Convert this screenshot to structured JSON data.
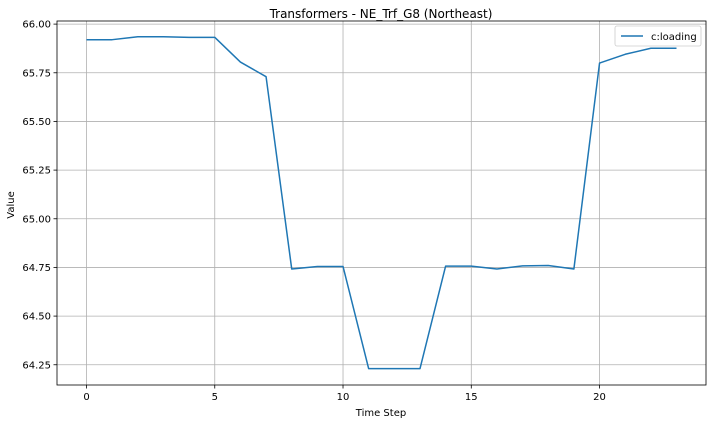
{
  "chart_data": {
    "type": "line",
    "title": "Transformers - NE_Trf_G8 (Northeast)",
    "xlabel": "Time Step",
    "ylabel": "Value",
    "xlim": [
      -1.15,
      24.15
    ],
    "ylim": [
      64.146,
      66.016
    ],
    "xticks": [
      0,
      5,
      10,
      15,
      20
    ],
    "yticks": [
      64.25,
      64.5,
      64.75,
      65.0,
      65.25,
      65.5,
      65.75,
      66.0
    ],
    "ytick_labels": [
      "64.25",
      "64.50",
      "64.75",
      "65.00",
      "65.25",
      "65.50",
      "65.75",
      "66.00"
    ],
    "grid": true,
    "legend_position": "top-right",
    "series": [
      {
        "name": "c:loading",
        "color": "#1f77b4",
        "x": [
          0,
          1,
          2,
          3,
          4,
          5,
          6,
          7,
          8,
          9,
          10,
          11,
          12,
          13,
          14,
          15,
          16,
          17,
          18,
          19,
          20,
          21,
          22,
          23
        ],
        "y": [
          65.92,
          65.92,
          65.935,
          65.935,
          65.932,
          65.932,
          65.805,
          65.73,
          64.742,
          64.755,
          64.755,
          64.23,
          64.23,
          64.23,
          64.757,
          64.757,
          64.742,
          64.758,
          64.76,
          64.742,
          65.8,
          65.845,
          65.876,
          65.876
        ]
      }
    ]
  }
}
